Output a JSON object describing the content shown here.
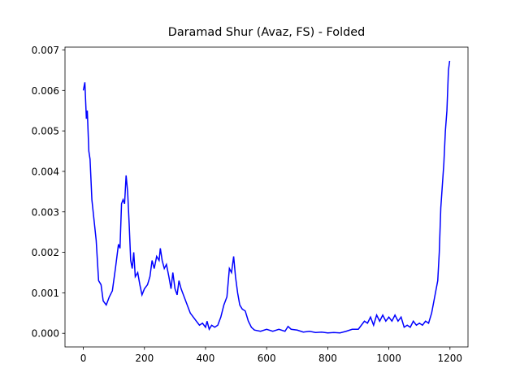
{
  "chart_data": {
    "type": "line",
    "title": "Daramad Shur (Avaz, FS) - Folded",
    "series": [
      {
        "color": "#0000ff",
        "x": [
          0,
          5,
          10,
          13,
          18,
          22,
          28,
          35,
          42,
          50,
          58,
          65,
          75,
          85,
          95,
          105,
          115,
          120,
          125,
          130,
          135,
          140,
          145,
          150,
          155,
          160,
          165,
          170,
          178,
          185,
          192,
          200,
          210,
          218,
          225,
          232,
          240,
          248,
          252,
          258,
          265,
          272,
          280,
          287,
          293,
          300,
          307,
          313,
          320,
          330,
          340,
          350,
          360,
          370,
          380,
          390,
          400,
          405,
          412,
          420,
          430,
          440,
          450,
          460,
          470,
          478,
          485,
          492,
          498,
          505,
          512,
          520,
          530,
          540,
          550,
          560,
          580,
          600,
          620,
          640,
          660,
          670,
          680,
          700,
          720,
          740,
          760,
          780,
          800,
          820,
          840,
          860,
          880,
          900,
          920,
          930,
          940,
          950,
          960,
          970,
          980,
          990,
          1000,
          1010,
          1020,
          1030,
          1040,
          1050,
          1060,
          1070,
          1080,
          1090,
          1100,
          1110,
          1120,
          1130,
          1140,
          1150,
          1160,
          1165,
          1170,
          1180,
          1185,
          1190,
          1195,
          1199
        ],
        "values": [
          0.006,
          0.0062,
          0.0053,
          0.0055,
          0.0045,
          0.0043,
          0.0033,
          0.0028,
          0.0023,
          0.0013,
          0.0012,
          0.0008,
          0.0007,
          0.0009,
          0.00105,
          0.0016,
          0.0022,
          0.0021,
          0.0032,
          0.0033,
          0.0032,
          0.0039,
          0.0035,
          0.0027,
          0.0018,
          0.0016,
          0.002,
          0.0014,
          0.0015,
          0.0012,
          0.00095,
          0.0011,
          0.0012,
          0.0014,
          0.0018,
          0.0016,
          0.0019,
          0.0018,
          0.0021,
          0.0018,
          0.0016,
          0.0017,
          0.0014,
          0.0011,
          0.0015,
          0.0011,
          0.00095,
          0.0013,
          0.0011,
          0.0009,
          0.0007,
          0.0005,
          0.0004,
          0.0003,
          0.0002,
          0.00025,
          0.00015,
          0.0003,
          0.0001,
          0.0002,
          0.00015,
          0.0002,
          0.0004,
          0.0007,
          0.0009,
          0.0016,
          0.0015,
          0.0019,
          0.0014,
          0.001,
          0.0007,
          0.0006,
          0.00055,
          0.0003,
          0.00015,
          8e-05,
          5e-05,
          0.0001,
          5e-05,
          0.0001,
          5e-05,
          0.00017,
          0.0001,
          8e-05,
          3e-05,
          5e-05,
          2e-05,
          3e-05,
          1e-05,
          2e-05,
          1e-05,
          5e-05,
          0.0001,
          0.0001,
          0.0003,
          0.00025,
          0.0004,
          0.0002,
          0.00045,
          0.0003,
          0.00045,
          0.0003,
          0.0004,
          0.0003,
          0.00045,
          0.0003,
          0.0004,
          0.00015,
          0.0002,
          0.00015,
          0.0003,
          0.0002,
          0.00025,
          0.0002,
          0.0003,
          0.00025,
          0.0005,
          0.0009,
          0.0013,
          0.002,
          0.0031,
          0.0042,
          0.005,
          0.0055,
          0.0065,
          0.00673
        ]
      }
    ],
    "xlim": [
      -60,
      1259
    ],
    "xticks": [
      0,
      200,
      400,
      600,
      800,
      1000,
      1200
    ],
    "ylim": [
      -0.000337,
      0.00707
    ],
    "yticks": [
      {
        "value": 0,
        "label": "0.000"
      },
      0.001,
      0.002,
      0.003,
      0.004,
      0.005,
      0.006,
      0.007
    ]
  }
}
